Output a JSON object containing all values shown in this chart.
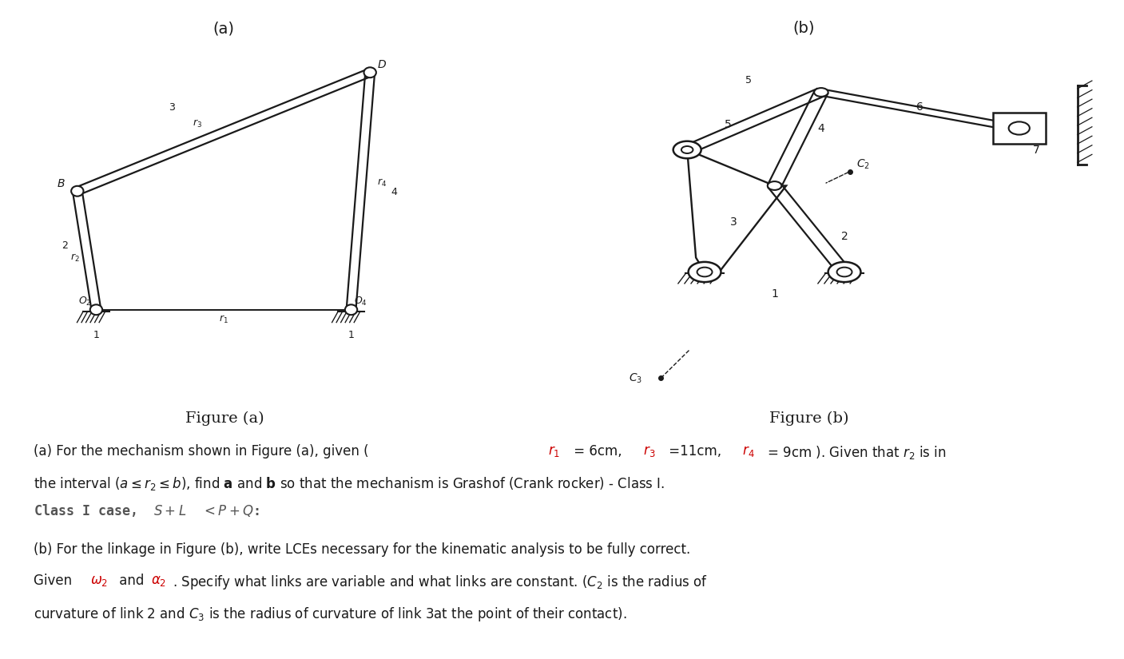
{
  "fig_width": 14.07,
  "fig_height": 8.25,
  "bg_color": "#ffffff",
  "title_a": "(a)",
  "title_b": "(b)",
  "figure_label_a": "Figure (a)",
  "figure_label_b": "Figure (b)",
  "black": "#1a1a1a",
  "gray": "#555555",
  "red": "#cc0000"
}
